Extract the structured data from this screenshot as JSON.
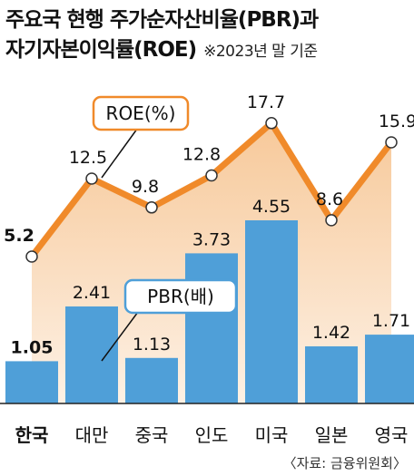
{
  "title_line1": "주요국 현행 주가순자산비율(PBR)과",
  "title_line2": "자기자본이익률(ROE)",
  "basis_note": "※2023년 말 기준",
  "source": "〈자료: 금융위원회〉",
  "colors": {
    "bar": "#4f9fd8",
    "line": "#f08a2a",
    "area_top": "#f7c99a",
    "area_bottom": "#fdf1e5",
    "marker_fill": "#ffffff"
  },
  "chart_data": {
    "type": "bar",
    "categories": [
      "한국",
      "대만",
      "중국",
      "인도",
      "미국",
      "일본",
      "영국"
    ],
    "series": [
      {
        "name": "PBR(배)",
        "type": "bar",
        "values": [
          1.05,
          2.41,
          1.13,
          3.73,
          4.55,
          1.42,
          1.71
        ]
      },
      {
        "name": "ROE(%)",
        "type": "line",
        "values": [
          5.2,
          12.5,
          9.8,
          12.8,
          17.7,
          8.6,
          15.9
        ]
      }
    ],
    "highlight_category": "한국",
    "xlabel": "",
    "ylabel": "",
    "grid": false
  }
}
